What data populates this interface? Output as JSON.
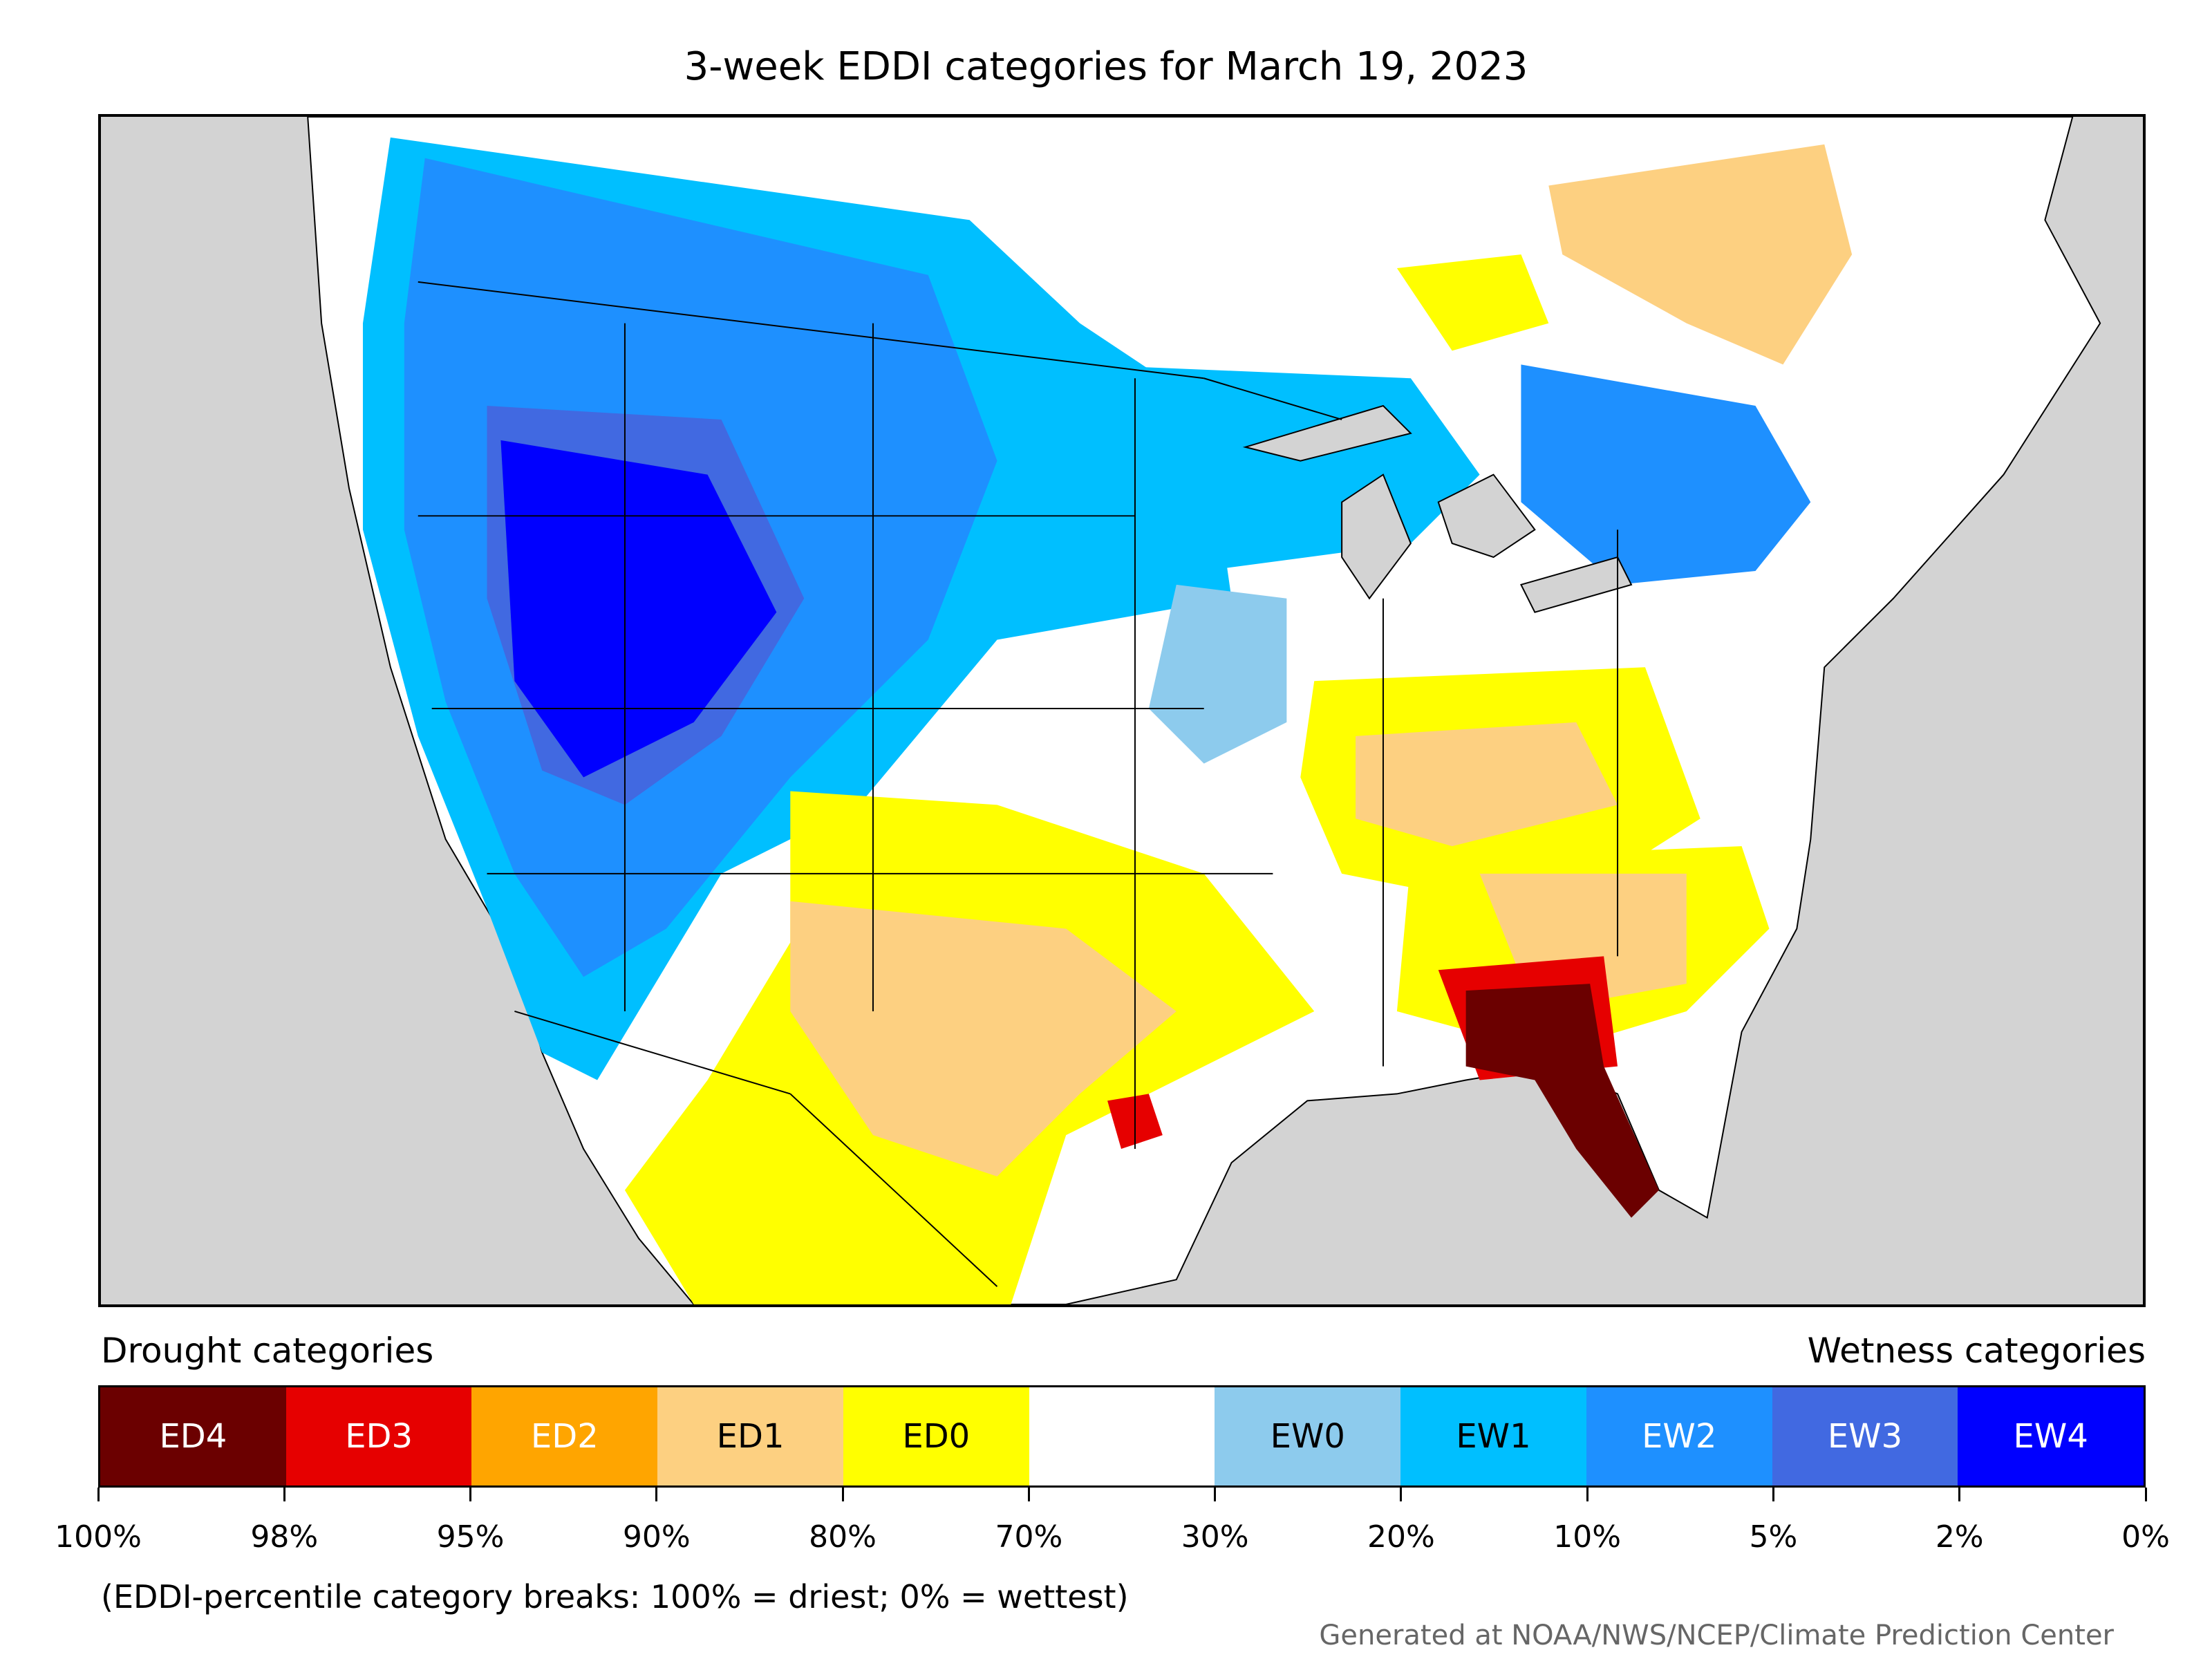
{
  "title": "3-week EDDI categories for March 19, 2023",
  "legend": {
    "drought_header": "Drought categories",
    "wetness_header": "Wetness categories",
    "categories": [
      {
        "label": "ED4",
        "color": "#6b0000",
        "text_color": "#ffffff"
      },
      {
        "label": "ED3",
        "color": "#e60000",
        "text_color": "#ffffff"
      },
      {
        "label": "ED2",
        "color": "#ffa500",
        "text_color": "#ffffff"
      },
      {
        "label": "ED1",
        "color": "#fdd081",
        "text_color": "#000000"
      },
      {
        "label": "ED0",
        "color": "#ffff00",
        "text_color": "#000000"
      },
      {
        "label": "",
        "color": "#ffffff",
        "text_color": "#000000"
      },
      {
        "label": "EW0",
        "color": "#8dcbed",
        "text_color": "#000000"
      },
      {
        "label": "EW1",
        "color": "#00bfff",
        "text_color": "#000000"
      },
      {
        "label": "EW2",
        "color": "#1e90ff",
        "text_color": "#ffffff"
      },
      {
        "label": "EW3",
        "color": "#4169e1",
        "text_color": "#ffffff"
      },
      {
        "label": "EW4",
        "color": "#0000ff",
        "text_color": "#ffffff"
      }
    ],
    "breaks": [
      "100%",
      "98%",
      "95%",
      "90%",
      "80%",
      "70%",
      "30%",
      "20%",
      "10%",
      "5%",
      "2%",
      "0%"
    ]
  },
  "note": "(EDDI-percentile category breaks: 100% = driest; 0% = wettest)",
  "credit": "Generated at NOAA/NWS/NCEP/Climate Prediction Center",
  "map": {
    "background_color": "#d3d3d3",
    "land_color": "#ffffff"
  }
}
